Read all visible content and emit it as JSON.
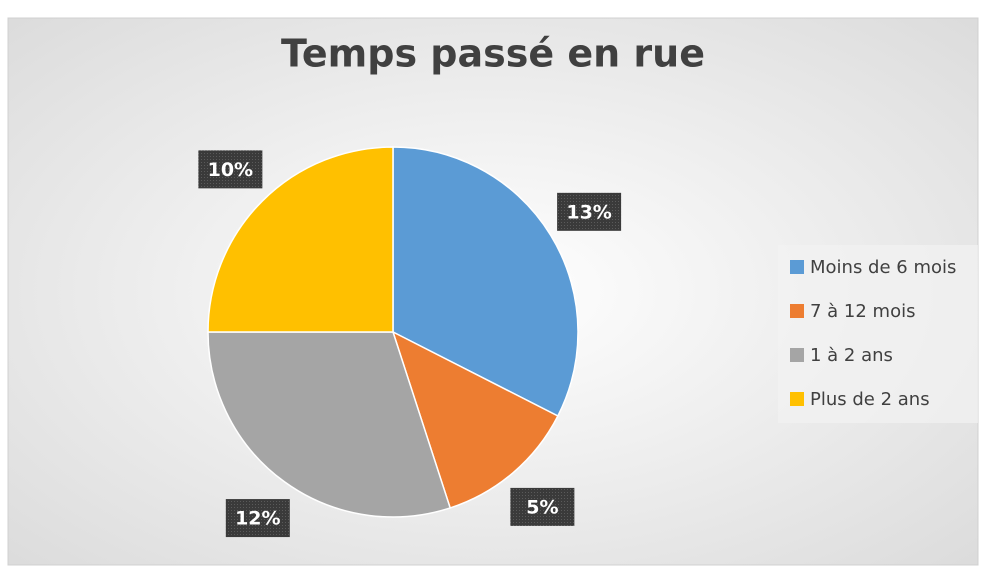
{
  "chart_data": {
    "type": "pie",
    "title": "Temps passé en rue",
    "categories": [
      "Moins de 6 mois",
      "7 à 12 mois",
      "1 à 2 ans",
      "Plus de 2 ans"
    ],
    "values": [
      13,
      5,
      12,
      10
    ],
    "value_labels": [
      "13%",
      "5%",
      "12%",
      "10%"
    ],
    "colors": [
      "#5b9bd5",
      "#ed7d31",
      "#a5a5a5",
      "#ffc000"
    ],
    "legend": "right"
  }
}
